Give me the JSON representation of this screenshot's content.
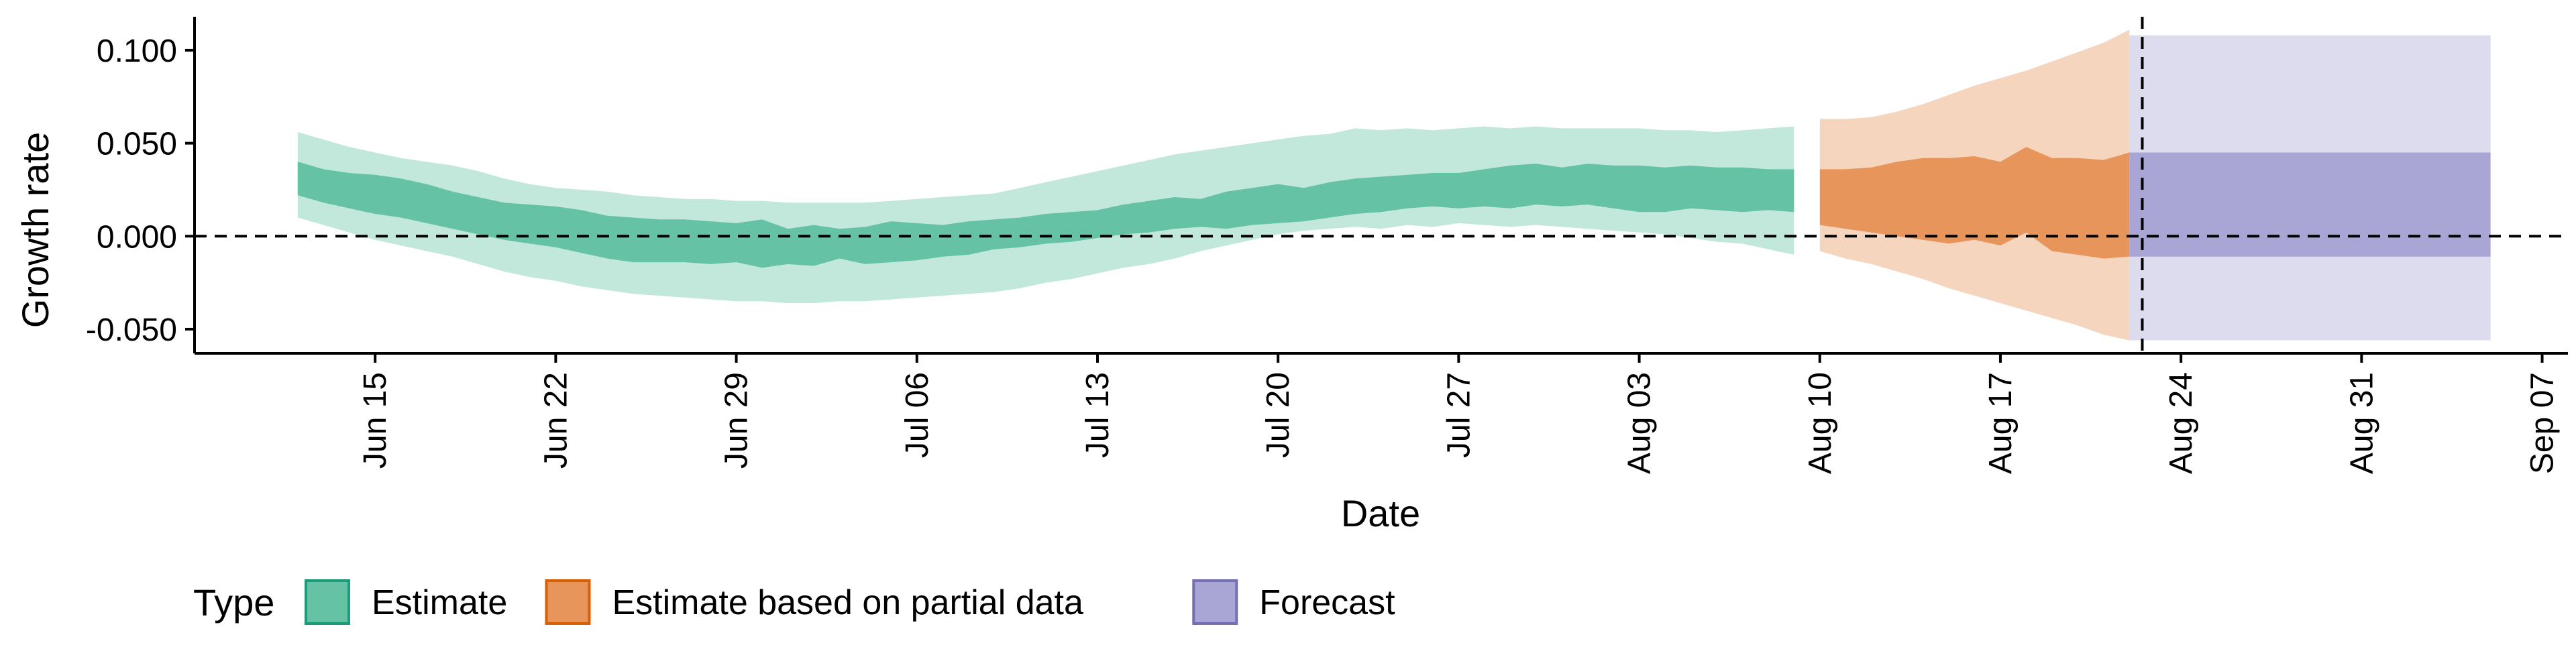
{
  "chart_data": {
    "type": "area",
    "xlabel": "Date",
    "ylabel": "Growth rate",
    "x_range": [
      "2020-06-08",
      "2020-09-08"
    ],
    "ylim": [
      -0.063,
      0.118
    ],
    "x_ticks": [
      {
        "date": "2020-06-15",
        "label": "Jun 15"
      },
      {
        "date": "2020-06-22",
        "label": "Jun 22"
      },
      {
        "date": "2020-06-29",
        "label": "Jun 29"
      },
      {
        "date": "2020-07-06",
        "label": "Jul 06"
      },
      {
        "date": "2020-07-13",
        "label": "Jul 13"
      },
      {
        "date": "2020-07-20",
        "label": "Jul 20"
      },
      {
        "date": "2020-07-27",
        "label": "Jul 27"
      },
      {
        "date": "2020-08-03",
        "label": "Aug 03"
      },
      {
        "date": "2020-08-10",
        "label": "Aug 10"
      },
      {
        "date": "2020-08-17",
        "label": "Aug 17"
      },
      {
        "date": "2020-08-24",
        "label": "Aug 24"
      },
      {
        "date": "2020-08-31",
        "label": "Aug 31"
      },
      {
        "date": "2020-09-07",
        "label": "Sep 07"
      }
    ],
    "y_ticks": [
      {
        "value": -0.05,
        "label": "-0.050"
      },
      {
        "value": 0.0,
        "label": "0.000"
      },
      {
        "value": 0.05,
        "label": "0.050"
      },
      {
        "value": 0.1,
        "label": "0.100"
      }
    ],
    "hline_y": 0,
    "vline_date": "2020-08-22",
    "grid": false,
    "legend": {
      "title": "Type",
      "position": "bottom-left",
      "entries": [
        {
          "label": "Estimate",
          "fill": "#66c2a5",
          "stroke": "#1b9e77"
        },
        {
          "label": "Estimate based on partial data",
          "fill": "#e7955a",
          "stroke": "#d95f02"
        },
        {
          "label": "Forecast",
          "fill": "#a9a5d4",
          "stroke": "#7570b3"
        }
      ]
    },
    "series": [
      {
        "type_index": 0,
        "x": [
          "2020-06-12",
          "2020-06-13",
          "2020-06-14",
          "2020-06-15",
          "2020-06-16",
          "2020-06-17",
          "2020-06-18",
          "2020-06-19",
          "2020-06-20",
          "2020-06-21",
          "2020-06-22",
          "2020-06-23",
          "2020-06-24",
          "2020-06-25",
          "2020-06-26",
          "2020-06-27",
          "2020-06-28",
          "2020-06-29",
          "2020-06-30",
          "2020-07-01",
          "2020-07-02",
          "2020-07-03",
          "2020-07-04",
          "2020-07-05",
          "2020-07-06",
          "2020-07-07",
          "2020-07-08",
          "2020-07-09",
          "2020-07-10",
          "2020-07-11",
          "2020-07-12",
          "2020-07-13",
          "2020-07-14",
          "2020-07-15",
          "2020-07-16",
          "2020-07-17",
          "2020-07-18",
          "2020-07-19",
          "2020-07-20",
          "2020-07-21",
          "2020-07-22",
          "2020-07-23",
          "2020-07-24",
          "2020-07-25",
          "2020-07-26",
          "2020-07-27",
          "2020-07-28",
          "2020-07-29",
          "2020-07-30",
          "2020-07-31",
          "2020-08-01",
          "2020-08-02",
          "2020-08-03",
          "2020-08-04",
          "2020-08-05",
          "2020-08-06",
          "2020-08-07",
          "2020-08-08",
          "2020-08-09"
        ],
        "upper_90": [
          0.056,
          0.052,
          0.048,
          0.045,
          0.042,
          0.04,
          0.038,
          0.035,
          0.031,
          0.028,
          0.026,
          0.025,
          0.024,
          0.022,
          0.021,
          0.02,
          0.02,
          0.019,
          0.019,
          0.018,
          0.018,
          0.018,
          0.018,
          0.019,
          0.02,
          0.021,
          0.022,
          0.023,
          0.026,
          0.029,
          0.032,
          0.035,
          0.038,
          0.041,
          0.044,
          0.046,
          0.048,
          0.05,
          0.052,
          0.054,
          0.055,
          0.058,
          0.057,
          0.058,
          0.057,
          0.058,
          0.059,
          0.058,
          0.059,
          0.058,
          0.058,
          0.058,
          0.058,
          0.057,
          0.057,
          0.056,
          0.057,
          0.058,
          0.059
        ],
        "lower_90": [
          0.01,
          0.006,
          0.002,
          -0.002,
          -0.005,
          -0.008,
          -0.011,
          -0.015,
          -0.019,
          -0.022,
          -0.024,
          -0.027,
          -0.029,
          -0.031,
          -0.032,
          -0.033,
          -0.034,
          -0.035,
          -0.035,
          -0.036,
          -0.036,
          -0.035,
          -0.035,
          -0.034,
          -0.033,
          -0.032,
          -0.031,
          -0.03,
          -0.028,
          -0.025,
          -0.023,
          -0.02,
          -0.017,
          -0.015,
          -0.012,
          -0.008,
          -0.005,
          -0.002,
          0.001,
          0.003,
          0.004,
          0.005,
          0.004,
          0.006,
          0.005,
          0.007,
          0.006,
          0.005,
          0.006,
          0.005,
          0.004,
          0.003,
          0.002,
          0.001,
          -0.001,
          -0.003,
          -0.004,
          -0.007,
          -0.01
        ],
        "upper_50": [
          0.04,
          0.036,
          0.034,
          0.033,
          0.031,
          0.028,
          0.024,
          0.021,
          0.018,
          0.017,
          0.016,
          0.014,
          0.011,
          0.01,
          0.009,
          0.009,
          0.008,
          0.007,
          0.009,
          0.004,
          0.006,
          0.004,
          0.005,
          0.008,
          0.007,
          0.006,
          0.008,
          0.009,
          0.01,
          0.012,
          0.013,
          0.014,
          0.017,
          0.019,
          0.021,
          0.02,
          0.024,
          0.026,
          0.028,
          0.026,
          0.029,
          0.031,
          0.032,
          0.033,
          0.034,
          0.034,
          0.036,
          0.038,
          0.039,
          0.037,
          0.039,
          0.038,
          0.038,
          0.037,
          0.038,
          0.037,
          0.037,
          0.036,
          0.036
        ],
        "lower_50": [
          0.022,
          0.018,
          0.015,
          0.012,
          0.01,
          0.007,
          0.004,
          0.001,
          -0.002,
          -0.004,
          -0.006,
          -0.009,
          -0.012,
          -0.014,
          -0.014,
          -0.014,
          -0.015,
          -0.014,
          -0.017,
          -0.015,
          -0.016,
          -0.012,
          -0.015,
          -0.014,
          -0.013,
          -0.011,
          -0.01,
          -0.007,
          -0.006,
          -0.004,
          -0.003,
          -0.001,
          0.001,
          0.002,
          0.004,
          0.005,
          0.004,
          0.006,
          0.007,
          0.008,
          0.01,
          0.012,
          0.013,
          0.015,
          0.016,
          0.015,
          0.016,
          0.015,
          0.017,
          0.016,
          0.017,
          0.015,
          0.013,
          0.013,
          0.015,
          0.014,
          0.013,
          0.014,
          0.013
        ]
      },
      {
        "type_index": 1,
        "x": [
          "2020-08-10",
          "2020-08-11",
          "2020-08-12",
          "2020-08-13",
          "2020-08-14",
          "2020-08-15",
          "2020-08-16",
          "2020-08-17",
          "2020-08-18",
          "2020-08-19",
          "2020-08-20",
          "2020-08-21",
          "2020-08-22"
        ],
        "upper_90": [
          0.063,
          0.063,
          0.064,
          0.067,
          0.071,
          0.076,
          0.081,
          0.085,
          0.089,
          0.094,
          0.099,
          0.104,
          0.111
        ],
        "lower_90": [
          -0.008,
          -0.012,
          -0.015,
          -0.019,
          -0.023,
          -0.028,
          -0.032,
          -0.036,
          -0.04,
          -0.044,
          -0.048,
          -0.053,
          -0.056
        ],
        "upper_50": [
          0.036,
          0.036,
          0.037,
          0.04,
          0.042,
          0.042,
          0.043,
          0.04,
          0.048,
          0.042,
          0.042,
          0.041,
          0.045
        ],
        "lower_50": [
          0.006,
          0.004,
          0.002,
          0.0,
          -0.002,
          -0.004,
          -0.002,
          -0.005,
          0.002,
          -0.008,
          -0.01,
          -0.012,
          -0.011
        ]
      },
      {
        "type_index": 2,
        "x": [
          "2020-08-23",
          "2020-09-05"
        ],
        "upper_90": [
          0.108,
          0.108
        ],
        "lower_90": [
          -0.056,
          -0.056
        ],
        "upper_50": [
          0.045,
          0.045
        ],
        "lower_50": [
          -0.011,
          -0.011
        ]
      }
    ]
  }
}
